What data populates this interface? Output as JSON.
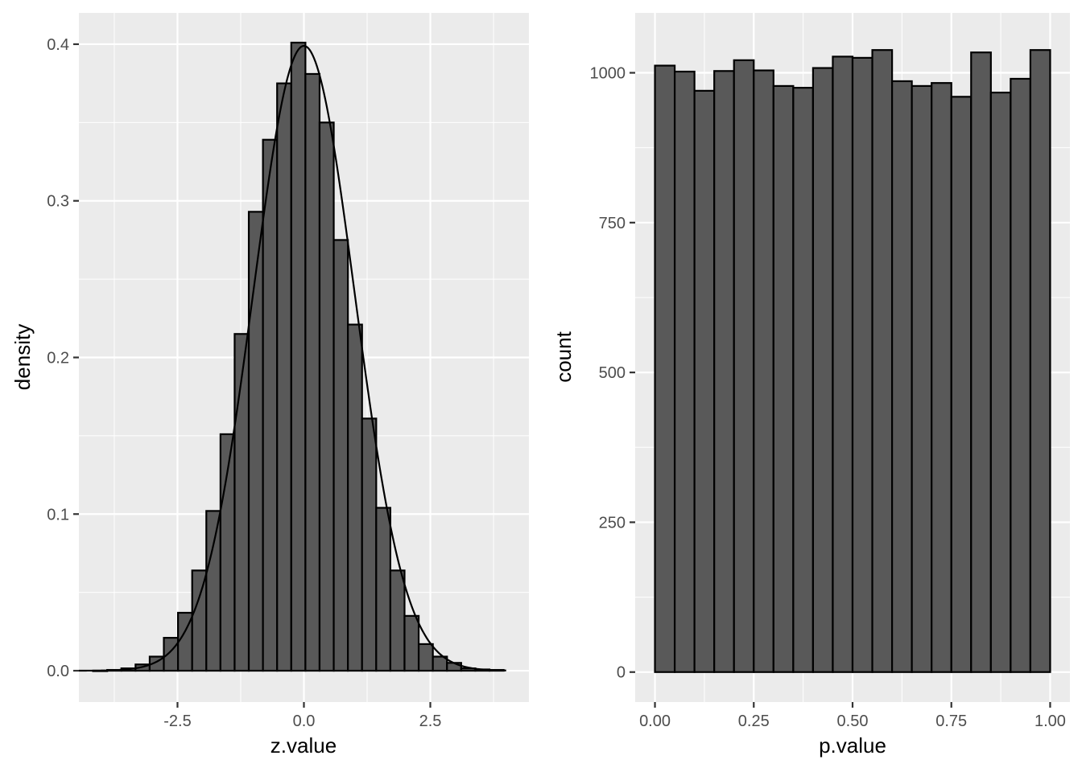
{
  "colors": {
    "panel_background": "#ebebeb",
    "grid_major": "#ffffff",
    "bar_fill": "#595959",
    "bar_outline": "#000000",
    "density_curve": "#000000",
    "tick_text": "#4d4d4d",
    "title_text": "#000000"
  },
  "chart_data": [
    {
      "type": "bar",
      "subtype": "histogram with density curve overlay",
      "xlabel": "z.value",
      "ylabel": "density",
      "xlim": [
        -4.45,
        4.45
      ],
      "ylim": [
        -0.02,
        0.42
      ],
      "x_ticks": [
        -2.5,
        0.0,
        2.5
      ],
      "x_tick_labels": [
        "-2.5",
        "0.0",
        "2.5"
      ],
      "y_ticks": [
        0.0,
        0.1,
        0.2,
        0.3,
        0.4
      ],
      "y_tick_labels": [
        "0.0",
        "0.1",
        "0.2",
        "0.3",
        "0.4"
      ],
      "grid": true,
      "bin_width": 0.28,
      "bin_starts": [
        -4.17,
        -3.89,
        -3.61,
        -3.33,
        -3.05,
        -2.77,
        -2.49,
        -2.21,
        -1.93,
        -1.65,
        -1.37,
        -1.09,
        -0.81,
        -0.53,
        -0.25,
        0.03,
        0.31,
        0.59,
        0.87,
        1.15,
        1.43,
        1.71,
        1.99,
        2.27,
        2.55,
        2.83,
        3.11,
        3.39,
        3.67
      ],
      "densities": [
        0.0,
        0.0005,
        0.0015,
        0.004,
        0.009,
        0.021,
        0.037,
        0.064,
        0.102,
        0.151,
        0.215,
        0.293,
        0.339,
        0.375,
        0.401,
        0.381,
        0.35,
        0.275,
        0.221,
        0.161,
        0.104,
        0.064,
        0.035,
        0.017,
        0.009,
        0.005,
        0.0015,
        0.0008,
        0.0005
      ],
      "curve": {
        "distribution": "standard normal",
        "mean": 0,
        "sd": 1,
        "x_range": [
          -4.45,
          4.0
        ]
      }
    },
    {
      "type": "bar",
      "subtype": "histogram",
      "xlabel": "p.value",
      "ylabel": "count",
      "xlim": [
        -0.05,
        1.05
      ],
      "ylim": [
        -50,
        1100
      ],
      "x_ticks": [
        0.0,
        0.25,
        0.5,
        0.75,
        1.0
      ],
      "x_tick_labels": [
        "0.00",
        "0.25",
        "0.50",
        "0.75",
        "1.00"
      ],
      "y_ticks": [
        0,
        250,
        500,
        750,
        1000
      ],
      "y_tick_labels": [
        "0",
        "250",
        "500",
        "750",
        "1000"
      ],
      "grid": true,
      "bin_width": 0.05,
      "bin_starts": [
        0.0,
        0.05,
        0.1,
        0.15,
        0.2,
        0.25,
        0.3,
        0.35,
        0.4,
        0.45,
        0.5,
        0.55,
        0.6,
        0.65,
        0.7,
        0.75,
        0.8,
        0.85,
        0.9,
        0.95
      ],
      "counts": [
        1012,
        1002,
        970,
        1003,
        1021,
        1004,
        978,
        975,
        1008,
        1027,
        1025,
        1038,
        986,
        978,
        983,
        960,
        1034,
        967,
        990,
        1038
      ]
    }
  ]
}
